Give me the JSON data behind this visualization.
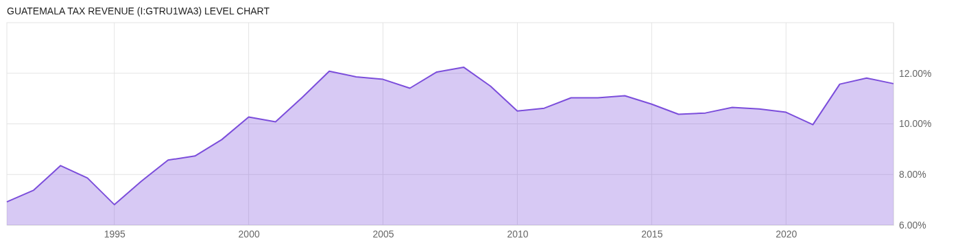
{
  "chart_data": {
    "type": "area",
    "title": "GUATEMALA TAX REVENUE (I:GTRU1WA3) LEVEL CHART",
    "x": [
      1991,
      1992,
      1993,
      1994,
      1995,
      1996,
      1997,
      1998,
      1999,
      2000,
      2001,
      2002,
      2003,
      2004,
      2005,
      2006,
      2007,
      2008,
      2009,
      2010,
      2011,
      2012,
      2013,
      2014,
      2015,
      2016,
      2017,
      2018,
      2019,
      2020,
      2021,
      2022,
      2023,
      2024
    ],
    "series": [
      {
        "color": "#7b4ddb",
        "values": [
          6.92,
          7.38,
          8.35,
          7.86,
          6.81,
          7.73,
          8.57,
          8.73,
          9.38,
          10.27,
          10.08,
          11.05,
          12.08,
          11.86,
          11.76,
          11.41,
          12.05,
          12.24,
          11.49,
          10.51,
          10.62,
          11.03,
          11.03,
          11.11,
          10.78,
          10.38,
          10.43,
          10.65,
          10.59,
          10.46,
          9.97,
          11.57,
          11.81,
          11.59
        ]
      }
    ],
    "xlim": [
      1991,
      2024
    ],
    "xticks": [
      1995,
      2000,
      2005,
      2010,
      2015,
      2020
    ],
    "ylim": [
      6,
      14
    ],
    "yticks": [
      {
        "value": 6,
        "label": "6.00%"
      },
      {
        "value": 8,
        "label": "8.00%"
      },
      {
        "value": 10,
        "label": "10.00%"
      },
      {
        "value": 12,
        "label": "12.00%"
      }
    ],
    "grid": true,
    "marker": "none",
    "line_style": "solid"
  }
}
